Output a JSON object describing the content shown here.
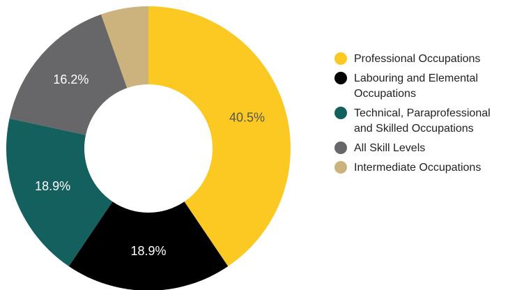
{
  "chart_data": {
    "type": "pie",
    "donut": true,
    "legend_position": "right",
    "slices": [
      {
        "label": "Professional Occupations",
        "value": 40.5,
        "display": "40.5%",
        "color": "#FCC923",
        "label_color": "#555555"
      },
      {
        "label": "Labouring and Elemental Occupations",
        "value": 18.9,
        "display": "18.9%",
        "color": "#000000",
        "label_color": "#ffffff"
      },
      {
        "label": "Technical, Paraprofessional and Skilled Occupations",
        "value": 18.9,
        "display": "18.9%",
        "color": "#13605F",
        "label_color": "#ffffff"
      },
      {
        "label": "All Skill Levels",
        "value": 16.2,
        "display": "16.2%",
        "color": "#67676A",
        "label_color": "#ffffff"
      },
      {
        "label": "Intermediate Occupations",
        "value": 5.4,
        "display": "",
        "color": "#CCB37D",
        "label_color": "#ffffff"
      }
    ]
  }
}
